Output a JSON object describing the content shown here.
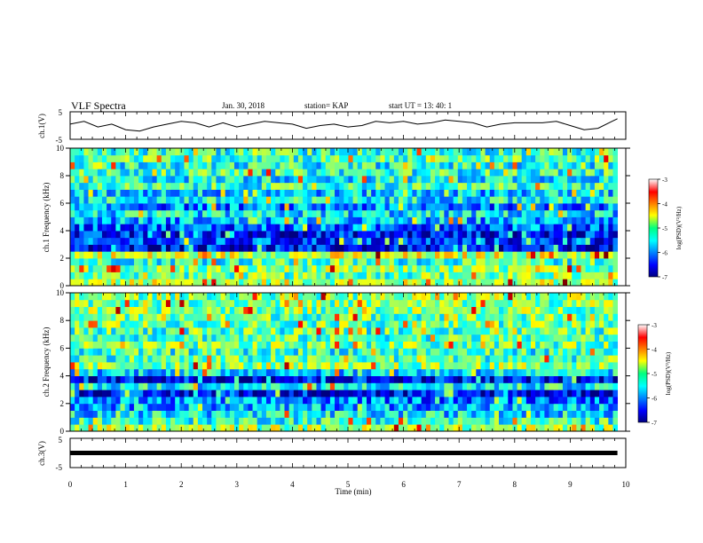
{
  "header": {
    "title": "VLF Spectra",
    "date": "Jan. 30, 2018",
    "station": "station= KAP",
    "start_ut": "start UT = 13: 40: 1"
  },
  "chart_data": [
    {
      "type": "line",
      "name": "ch1-waveform",
      "ylabel": "ch.1(V)",
      "ylim": [
        -5,
        5
      ],
      "yticks": [
        "5",
        "-5"
      ],
      "xlim": [
        0,
        10
      ],
      "x_end": 9.85,
      "trace_color": "#000000",
      "x": [
        0,
        0.25,
        0.5,
        0.75,
        1.0,
        1.25,
        1.5,
        1.75,
        2.0,
        2.25,
        2.5,
        2.75,
        3.0,
        3.25,
        3.5,
        3.75,
        4.0,
        4.25,
        4.5,
        4.75,
        5.0,
        5.25,
        5.5,
        5.75,
        6.0,
        6.25,
        6.5,
        6.75,
        7.0,
        7.25,
        7.5,
        7.75,
        8.0,
        8.25,
        8.5,
        8.75,
        9.0,
        9.25,
        9.5,
        9.75,
        9.85
      ],
      "values": [
        0.5,
        1.5,
        -0.5,
        0.5,
        -1.5,
        -2.0,
        -0.5,
        0.5,
        1.5,
        1.0,
        -0.5,
        1.0,
        -0.5,
        0.5,
        1.5,
        1.0,
        0.5,
        -1.0,
        0.0,
        0.5,
        -0.5,
        0.0,
        1.5,
        1.0,
        1.5,
        0.5,
        1.0,
        2.0,
        1.5,
        1.0,
        -0.5,
        0.5,
        1.0,
        1.0,
        1.0,
        1.5,
        0.0,
        -1.5,
        -1.0,
        1.5,
        2.5
      ]
    },
    {
      "type": "heatmap",
      "name": "ch1-spectrogram",
      "ylabel": "ch.1 Frequency (kHz)",
      "ylim": [
        0,
        10
      ],
      "yticks": [
        "0",
        "2",
        "4",
        "6",
        "8",
        "10"
      ],
      "xlim": [
        0,
        10
      ],
      "x_end": 9.85,
      "colorbar": {
        "label": "log(PSD)(V²/Hz)",
        "range": [
          -7,
          -3
        ],
        "ticks": [
          "-3",
          "-4",
          "-5",
          "-6",
          "-7"
        ]
      },
      "frequency_khz": [
        0.25,
        0.75,
        1.25,
        1.75,
        2.25,
        2.75,
        3.25,
        3.75,
        4.25,
        4.75,
        5.25,
        5.75,
        6.25,
        6.75,
        7.25,
        7.75,
        8.25,
        8.75,
        9.25,
        9.75
      ],
      "mean_log_psd": [
        -4.8,
        -5.1,
        -5.0,
        -5.3,
        -4.7,
        -6.6,
        -6.3,
        -6.5,
        -6.1,
        -5.8,
        -5.6,
        -6.0,
        -5.5,
        -5.7,
        -5.3,
        -5.5,
        -5.3,
        -5.4,
        -5.2,
        -5.3
      ]
    },
    {
      "type": "heatmap",
      "name": "ch2-spectrogram",
      "ylabel": "ch.2 Frequency (kHz)",
      "ylim": [
        0,
        10
      ],
      "yticks": [
        "0",
        "2",
        "4",
        "6",
        "8",
        "10"
      ],
      "xlim": [
        0,
        10
      ],
      "x_end": 9.85,
      "colorbar": {
        "label": "log(PSD)(V²/Hz)",
        "range": [
          -7,
          -3
        ],
        "ticks": [
          "-3",
          "-4",
          "-5",
          "-6",
          "-7"
        ]
      },
      "frequency_khz": [
        0.25,
        0.75,
        1.25,
        1.75,
        2.25,
        2.75,
        3.25,
        3.75,
        4.25,
        4.75,
        5.25,
        5.75,
        6.25,
        6.75,
        7.25,
        7.75,
        8.25,
        8.75,
        9.25,
        9.75
      ],
      "mean_log_psd": [
        -4.9,
        -5.3,
        -5.6,
        -5.8,
        -6.0,
        -6.5,
        -5.5,
        -6.5,
        -5.6,
        -5.0,
        -5.2,
        -5.3,
        -5.1,
        -5.2,
        -5.2,
        -5.1,
        -5.1,
        -5.0,
        -5.0,
        -5.0
      ]
    },
    {
      "type": "line",
      "name": "ch3-waveform",
      "ylabel": "ch.3(V)",
      "ylim": [
        -5,
        5
      ],
      "yticks": [
        "5",
        "-5"
      ],
      "xlim": [
        0,
        10
      ],
      "x_end": 9.85,
      "trace_color": "#000000",
      "x": [
        0,
        9.85
      ],
      "values": [
        0,
        0
      ]
    }
  ],
  "xaxis": {
    "label": "Time (min)",
    "ticks": [
      "0",
      "1",
      "2",
      "3",
      "4",
      "5",
      "6",
      "7",
      "8",
      "9",
      "10"
    ]
  }
}
